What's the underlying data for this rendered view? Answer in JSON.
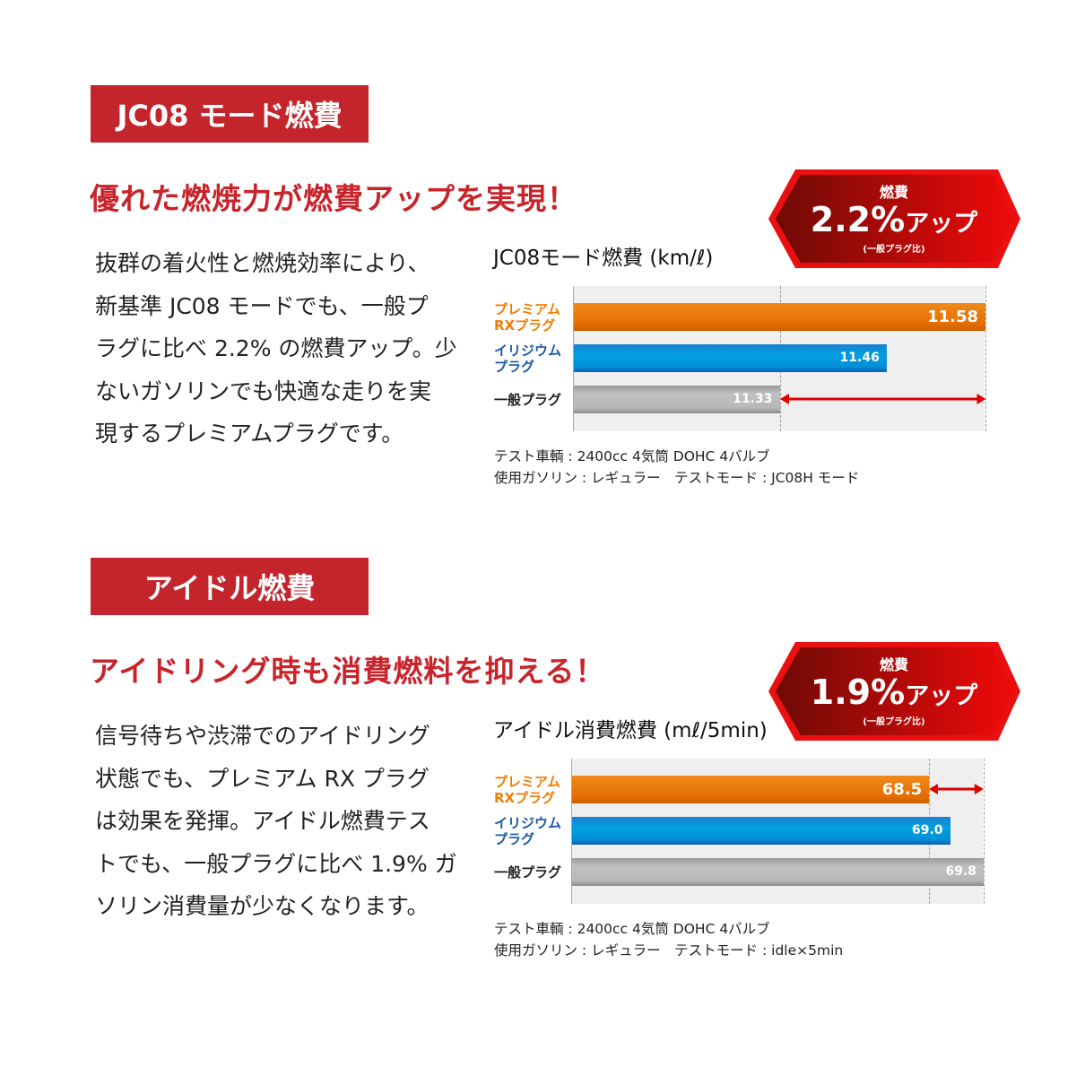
{
  "sections": [
    {
      "header": "JC08 モード燃費",
      "headline": "優れた燃焼力が燃費アップを実現！",
      "body_lines": [
        "抜群の着火性と燃焼効率により、",
        "新基準 JC08 モードでも、一般プ",
        "ラグに比べ 2.2% の燃費アップ。少",
        "ないガソリンでも快適な走りを実",
        "現するプレミアムプラグです。"
      ],
      "badge": {
        "top": "燃費",
        "value": "2.2%",
        "suffix": "アップ",
        "sub": "(一般プラグ比)"
      },
      "notes": [
        "テスト車輌 : 2400cc 4気筒 DOHC 4バルブ",
        "使用ガソリン : レギュラー　テストモード : JC08H モード"
      ]
    },
    {
      "header": "アイドル燃費",
      "headline": "アイドリング時も消費燃料を抑える！",
      "body_lines": [
        "信号待ちや渋滞でのアイドリング",
        "状態でも、プレミアム RX プラグ",
        "は効果を発揮。アイドル燃費テス",
        "トでも、一般プラグに比べ 1.9% ガ",
        "ソリン消費量が少なくなります。"
      ],
      "badge": {
        "top": "燃費",
        "value": "1.9%",
        "suffix": "アップ",
        "sub": "(一般プラグ比)"
      },
      "notes": [
        "テスト車輌 : 2400cc 4気筒 DOHC 4バルブ",
        "使用ガソリン : レギュラー　テストモード : idle×5min"
      ]
    }
  ],
  "colors": {
    "accent": "#c4252c",
    "premium": "#e36c00",
    "iridium": "#0090d8",
    "standard": "#b8b8b8",
    "category_premium": "#f07d00",
    "category_iridium": "#1a5aa8",
    "arrow": "#e00000"
  },
  "chart_data": [
    {
      "type": "bar",
      "orientation": "horizontal",
      "title": "JC08モード燃費 (km/ℓ)",
      "categories": [
        "プレミアム\nRXプラグ",
        "イリジウム\nプラグ",
        "一般プラグ"
      ],
      "values": [
        11.58,
        11.46,
        11.33
      ],
      "value_labels": [
        "11.58",
        "11.46",
        "11.33"
      ],
      "xlim": [
        11.08,
        11.58
      ],
      "reference_lines": [
        11.33,
        11.58
      ],
      "grid": false,
      "arrow_between": [
        11.33,
        11.58
      ]
    },
    {
      "type": "bar",
      "orientation": "horizontal",
      "title": "アイドル消費燃費 (mℓ/5min)",
      "categories": [
        "プレミアム\nRXプラグ",
        "イリジウム\nプラグ",
        "一般プラグ"
      ],
      "values": [
        68.5,
        69.0,
        69.8
      ],
      "value_labels": [
        "68.5",
        "69.0",
        "69.8"
      ],
      "xlim": [
        60,
        69.8
      ],
      "reference_lines": [
        68.5,
        69.8
      ],
      "grid": false,
      "arrow_between": [
        68.5,
        69.8
      ]
    }
  ]
}
